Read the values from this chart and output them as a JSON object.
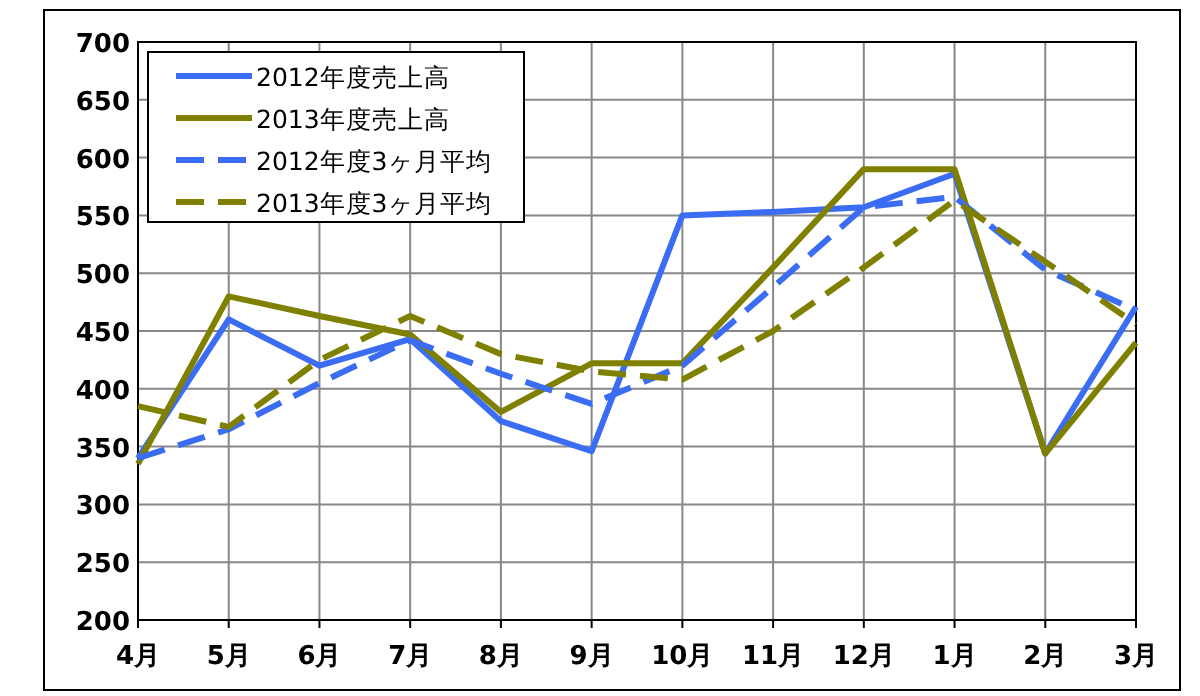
{
  "chart_data": {
    "type": "line",
    "categories": [
      "4月",
      "5月",
      "6月",
      "7月",
      "8月",
      "9月",
      "10月",
      "11月",
      "12月",
      "1月",
      "2月",
      "3月"
    ],
    "series": [
      {
        "name": "2012年度売上高",
        "color": "#3a6cf4",
        "line_style": "solid",
        "values": [
          340,
          460,
          420,
          443,
          372,
          346,
          550,
          553,
          557,
          586,
          344,
          471
        ]
      },
      {
        "name": "2013年度売上高",
        "color": "#808000",
        "line_style": "solid",
        "values": [
          335,
          480,
          463,
          447,
          380,
          422,
          422,
          505,
          590,
          590,
          344,
          440
        ]
      },
      {
        "name": "2012年度3ヶ月平均",
        "color": "#3a6cf4",
        "line_style": "dashed",
        "values": [
          340,
          365,
          405,
          442,
          413,
          387,
          420,
          488,
          557,
          566,
          503,
          468
        ]
      },
      {
        "name": "2013年度3ヶ月平均",
        "color": "#808000",
        "line_style": "dashed",
        "values": [
          385,
          367,
          425,
          463,
          430,
          415,
          408,
          450,
          505,
          563,
          510,
          456
        ]
      }
    ],
    "ylim": [
      200,
      700
    ],
    "yticks": [
      200,
      250,
      300,
      350,
      400,
      450,
      500,
      550,
      600,
      650,
      700
    ],
    "grid": true,
    "legend": "top left",
    "marker": "none"
  }
}
